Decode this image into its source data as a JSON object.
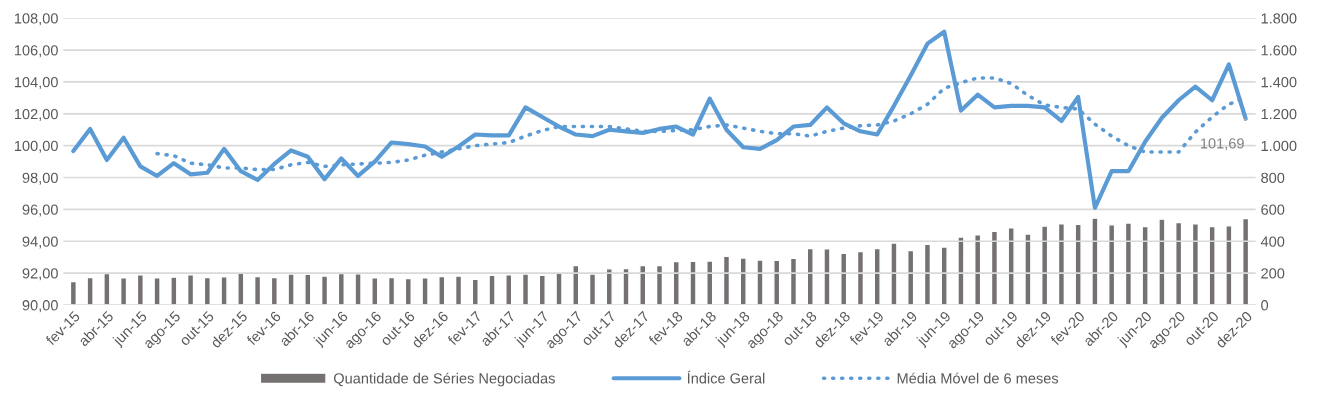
{
  "chart_data": {
    "type": "bar",
    "categories": [
      "fev-15",
      null,
      "abr-15",
      null,
      "jun-15",
      null,
      "ago-15",
      null,
      "out-15",
      null,
      "dez-15",
      null,
      "fev-16",
      null,
      "abr-16",
      null,
      "jun-16",
      null,
      "ago-16",
      null,
      "out-16",
      null,
      "dez-16",
      null,
      "fev-17",
      null,
      "abr-17",
      null,
      "jun-17",
      null,
      "ago-17",
      null,
      "out-17",
      null,
      "dez-17",
      null,
      "fev-18",
      null,
      "abr-18",
      null,
      "jun-18",
      null,
      "ago-18",
      null,
      "out-18",
      null,
      "dez-18",
      null,
      "fev-19",
      null,
      "abr-19",
      null,
      "jun-19",
      null,
      "ago-19",
      null,
      "out-19",
      null,
      "dez-19",
      null,
      "fev-20",
      null,
      "abr-20",
      null,
      "jun-20",
      null,
      "ago-20",
      null,
      "out-20",
      null,
      "dez-20"
    ],
    "series": [
      {
        "name": "Quantidade de Séries Negociadas",
        "axis": "y2",
        "color": "#767171",
        "values": [
          147,
          173,
          198,
          171,
          189,
          171,
          175,
          189,
          173,
          177,
          204,
          179,
          173,
          194,
          192,
          181,
          198,
          196,
          171,
          173,
          166,
          171,
          179,
          181,
          162,
          187,
          189,
          194,
          187,
          202,
          248,
          194,
          227,
          229,
          248,
          248,
          272,
          274,
          276,
          305,
          295,
          282,
          280,
          293,
          354,
          352,
          324,
          335,
          354,
          389,
          341,
          381,
          364,
          427,
          440,
          463,
          484,
          446,
          495,
          509,
          507,
          545,
          503,
          514,
          493,
          539,
          518,
          509,
          493,
          497,
          543
        ]
      },
      {
        "name": "Índice Geral",
        "type": "line",
        "axis": "y",
        "color": "#5b9bd5",
        "line_style": "solid",
        "values": [
          99.66,
          101.05,
          99.1,
          100.5,
          98.7,
          98.1,
          98.9,
          98.2,
          98.3,
          99.8,
          98.4,
          97.85,
          98.85,
          99.7,
          99.3,
          97.9,
          99.2,
          98.1,
          99.0,
          100.2,
          100.1,
          99.95,
          99.3,
          99.95,
          100.7,
          100.65,
          100.65,
          102.4,
          101.8,
          101.2,
          100.7,
          100.6,
          101.0,
          100.9,
          100.8,
          101.05,
          101.2,
          100.7,
          102.95,
          101.0,
          99.9,
          99.8,
          100.35,
          101.2,
          101.3,
          102.4,
          101.4,
          100.9,
          100.7,
          102.5,
          104.4,
          106.4,
          107.15,
          102.2,
          103.2,
          102.4,
          102.5,
          102.5,
          102.4,
          101.55,
          103.05,
          96.1,
          98.4,
          98.4,
          100.25,
          101.75,
          102.85,
          103.7,
          102.85,
          105.1,
          101.69
        ]
      },
      {
        "name": "Média Móvel de 6 meses",
        "type": "line",
        "axis": "y",
        "color": "#5b9bd5",
        "line_style": "dotted",
        "values": [
          null,
          null,
          null,
          null,
          null,
          99.5,
          99.37,
          98.9,
          98.8,
          98.6,
          98.6,
          98.5,
          98.5,
          98.8,
          98.95,
          98.7,
          98.8,
          98.85,
          98.9,
          98.95,
          99.1,
          99.4,
          99.6,
          99.8,
          100.0,
          100.1,
          100.2,
          100.6,
          100.95,
          101.2,
          101.2,
          101.2,
          101.2,
          101.05,
          100.9,
          100.9,
          100.95,
          101.0,
          101.2,
          101.3,
          101.1,
          100.9,
          100.75,
          100.75,
          100.6,
          100.9,
          101.1,
          101.25,
          101.3,
          101.55,
          102.0,
          102.6,
          103.6,
          103.95,
          104.25,
          104.25,
          103.9,
          103.15,
          102.55,
          102.4,
          102.3,
          101.35,
          100.6,
          100.0,
          99.6,
          99.6,
          99.6,
          100.85,
          101.8,
          102.6,
          103.0
        ]
      }
    ],
    "ylim": [
      90,
      108
    ],
    "yticks": [
      {
        "value": 90,
        "label": "90,00"
      },
      {
        "value": 92,
        "label": "92,00"
      },
      {
        "value": 94,
        "label": "94,00"
      },
      {
        "value": 96,
        "label": "96,00"
      },
      {
        "value": 98,
        "label": "98,00"
      },
      {
        "value": 100,
        "label": "100,00"
      },
      {
        "value": 102,
        "label": "102,00"
      },
      {
        "value": 104,
        "label": "104,00"
      },
      {
        "value": 106,
        "label": "106,00"
      },
      {
        "value": 108,
        "label": "108,00"
      }
    ],
    "y2lim": [
      0,
      1800
    ],
    "y2ticks": [
      0,
      200,
      400,
      600,
      800,
      {
        "value": 1000,
        "label": "1.000"
      },
      {
        "value": 1200,
        "label": "1.200"
      },
      {
        "value": 1400,
        "label": "1.400"
      },
      {
        "value": 1600,
        "label": "1.600"
      },
      {
        "value": 1800,
        "label": "1.800"
      }
    ],
    "annotations": [
      {
        "text": "101,69",
        "x": "dez-20",
        "y": 101.69
      }
    ],
    "grid": "y",
    "legend": "bottom"
  }
}
